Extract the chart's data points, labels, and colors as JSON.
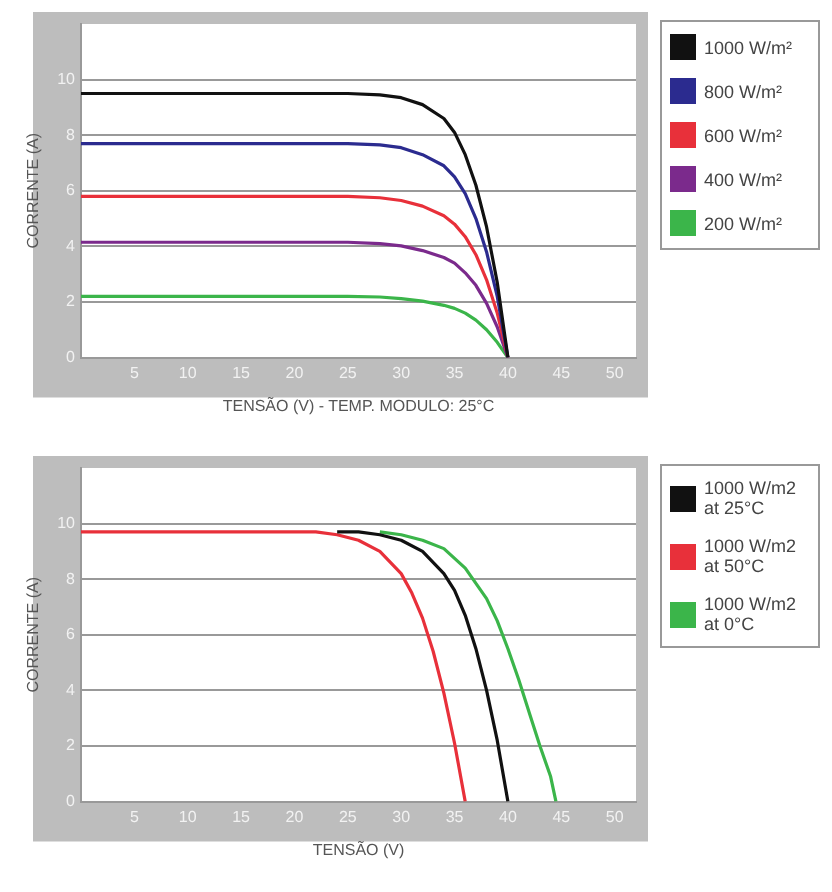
{
  "chart_data": [
    {
      "type": "line",
      "xlabel": "TENSÃO (V) - TEMP. MODULO: 25°C",
      "ylabel": "CORRENTE (A)",
      "xlim": [
        0,
        52
      ],
      "ylim": [
        0,
        12
      ],
      "xticks": [
        5,
        10,
        15,
        20,
        25,
        30,
        35,
        40,
        45,
        50
      ],
      "yticks": [
        0,
        2,
        4,
        6,
        8,
        10
      ],
      "grid": "y",
      "legend": "right",
      "series": [
        {
          "name": "1000 W/m²",
          "color": "#111111",
          "x": [
            0,
            5,
            10,
            15,
            20,
            25,
            28,
            30,
            32,
            34,
            35,
            36,
            37,
            38,
            39,
            40
          ],
          "values": [
            9.5,
            9.5,
            9.5,
            9.5,
            9.5,
            9.5,
            9.45,
            9.35,
            9.1,
            8.6,
            8.1,
            7.3,
            6.2,
            4.7,
            2.7,
            0
          ]
        },
        {
          "name": "800 W/m²",
          "color": "#2b2b8f",
          "x": [
            0,
            5,
            10,
            15,
            20,
            25,
            28,
            30,
            32,
            34,
            35,
            36,
            37,
            38,
            39,
            40
          ],
          "values": [
            7.7,
            7.7,
            7.7,
            7.7,
            7.7,
            7.7,
            7.65,
            7.55,
            7.3,
            6.9,
            6.5,
            5.9,
            5.0,
            3.8,
            2.2,
            0
          ]
        },
        {
          "name": "600 W/m²",
          "color": "#e8303a",
          "x": [
            0,
            5,
            10,
            15,
            20,
            25,
            28,
            30,
            32,
            34,
            35,
            36,
            37,
            38,
            39,
            40
          ],
          "values": [
            5.8,
            5.8,
            5.8,
            5.8,
            5.8,
            5.8,
            5.75,
            5.65,
            5.45,
            5.1,
            4.8,
            4.35,
            3.7,
            2.8,
            1.6,
            0
          ]
        },
        {
          "name": "400 W/m²",
          "color": "#7b2a8c",
          "x": [
            0,
            5,
            10,
            15,
            20,
            25,
            28,
            30,
            32,
            34,
            35,
            36,
            37,
            38,
            39,
            40
          ],
          "values": [
            4.15,
            4.15,
            4.15,
            4.15,
            4.15,
            4.15,
            4.1,
            4.02,
            3.85,
            3.6,
            3.4,
            3.05,
            2.6,
            1.95,
            1.1,
            0
          ]
        },
        {
          "name": "200 W/m²",
          "color": "#3bb54a",
          "x": [
            0,
            5,
            10,
            15,
            20,
            25,
            28,
            30,
            32,
            34,
            35,
            36,
            37,
            38,
            39,
            40
          ],
          "values": [
            2.2,
            2.2,
            2.2,
            2.2,
            2.2,
            2.2,
            2.18,
            2.12,
            2.03,
            1.88,
            1.77,
            1.6,
            1.35,
            1.0,
            0.55,
            0
          ]
        }
      ]
    },
    {
      "type": "line",
      "xlabel": "TENSÃO (V)",
      "ylabel": "CORRENTE (A)",
      "xlim": [
        0,
        52
      ],
      "ylim": [
        0,
        12
      ],
      "xticks": [
        5,
        10,
        15,
        20,
        25,
        30,
        35,
        40,
        45,
        50
      ],
      "yticks": [
        0,
        2,
        4,
        6,
        8,
        10
      ],
      "grid": "y",
      "legend": "right",
      "series": [
        {
          "name": "1000 W/m2 at 25°C",
          "color": "#111111",
          "x": [
            24,
            26,
            28,
            30,
            32,
            34,
            35,
            36,
            37,
            38,
            39,
            40
          ],
          "values": [
            9.7,
            9.7,
            9.6,
            9.4,
            9.0,
            8.2,
            7.6,
            6.7,
            5.5,
            4.0,
            2.2,
            0
          ]
        },
        {
          "name": "1000 W/m2 at 50°C",
          "color": "#e8303a",
          "x": [
            0,
            5,
            10,
            15,
            20,
            22,
            24,
            26,
            28,
            30,
            31,
            32,
            33,
            34,
            35,
            36
          ],
          "values": [
            9.7,
            9.7,
            9.7,
            9.7,
            9.7,
            9.7,
            9.6,
            9.4,
            9.0,
            8.2,
            7.5,
            6.6,
            5.4,
            3.9,
            2.1,
            0
          ]
        },
        {
          "name": "1000 W/m2 at 0°C",
          "color": "#3bb54a",
          "x": [
            28,
            30,
            32,
            34,
            36,
            38,
            39,
            40,
            41,
            42,
            43,
            44,
            44.5
          ],
          "values": [
            9.7,
            9.6,
            9.4,
            9.1,
            8.4,
            7.3,
            6.5,
            5.5,
            4.4,
            3.2,
            2.0,
            0.9,
            0
          ]
        }
      ]
    }
  ]
}
